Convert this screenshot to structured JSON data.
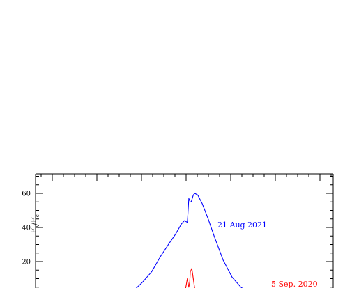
{
  "chart_data": {
    "type": "line",
    "ylabel": "F",
    "ylabel_sub1": "λ",
    "ylabel_mid": "/F",
    "ylabel_sub2": "c",
    "xlim": [
      0,
      1
    ],
    "ylim": [
      0,
      70
    ],
    "y_ticks": [
      20,
      40,
      60
    ],
    "y_tick_labels": [
      "20",
      "40",
      "60"
    ],
    "grid": false,
    "series": [
      {
        "name": "21 Aug 2021",
        "color": "#0000ff",
        "x": [
          0.305,
          0.33,
          0.36,
          0.39,
          0.42,
          0.45,
          0.47,
          0.49,
          0.5,
          0.51,
          0.512,
          0.515,
          0.52,
          0.523,
          0.53,
          0.535,
          0.545,
          0.56,
          0.58,
          0.6,
          0.63,
          0.66,
          0.69,
          0.72,
          0.76
        ],
        "y": [
          0.3,
          3,
          8,
          14,
          23,
          31,
          36,
          42,
          44,
          43,
          48,
          57,
          55,
          55,
          59,
          60,
          59,
          54,
          45,
          35,
          21,
          11,
          5,
          1.5,
          0
        ]
      },
      {
        "name": "5 Sep. 2020",
        "color": "#ff0000",
        "x": [
          0.5,
          0.505,
          0.51,
          0.515,
          0.518,
          0.52,
          0.525,
          0.53,
          0.535,
          0.54
        ],
        "y": [
          0,
          5,
          10,
          5,
          8,
          14,
          16,
          10,
          4,
          0
        ]
      }
    ],
    "annotations": [
      {
        "text": "21 Aug 2021",
        "color": "#0000ff"
      },
      {
        "text": "5 Sep. 2020",
        "color": "#ff0000"
      }
    ]
  }
}
